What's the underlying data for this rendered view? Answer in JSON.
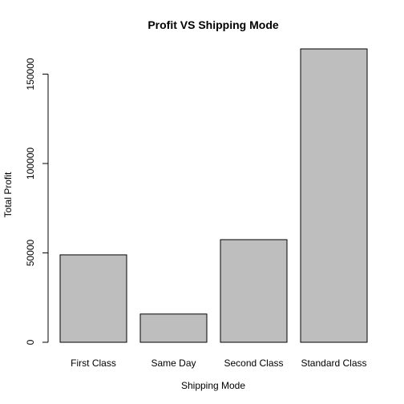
{
  "chart_data": {
    "type": "bar",
    "title": "Profit VS Shipping Mode",
    "xlabel": "Shipping Mode",
    "ylabel": "Total Profit",
    "categories": [
      "First Class",
      "Same Day",
      "Second Class",
      "Standard Class"
    ],
    "values": [
      48900,
      15800,
      57400,
      164100
    ],
    "ylim": [
      0,
      165000
    ],
    "yticks": [
      0,
      50000,
      100000,
      150000
    ],
    "ytick_labels": [
      "0",
      "50000",
      "100000",
      "150000"
    ],
    "bar_color": "#bebebe",
    "grid": false,
    "legend": "none"
  }
}
